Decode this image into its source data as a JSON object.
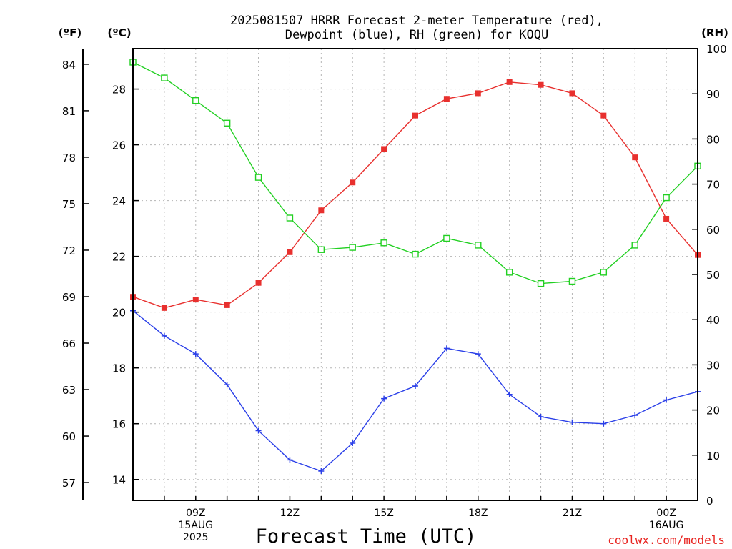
{
  "chart_data": {
    "type": "line",
    "title_line1": "2025081507 HRRR Forecast 2-meter Temperature (red),",
    "title_line2": "Dewpoint (blue), RH (green) for KOQU",
    "unit_f": "(ºF)",
    "unit_c": "(ºC)",
    "unit_rh": "(RH)",
    "xlabel": "Forecast Time (UTC)",
    "credit": "coolwx.com/models",
    "x_range": [
      7,
      25
    ],
    "c_range": [
      13.25,
      29.45
    ],
    "rh_range": [
      0,
      100
    ],
    "c_ticks": [
      "14",
      "16",
      "18",
      "20",
      "22",
      "24",
      "26",
      "28"
    ],
    "f_ticks": [
      "57",
      "60",
      "63",
      "66",
      "69",
      "72",
      "75",
      "78",
      "81",
      "84"
    ],
    "rh_ticks": [
      "0",
      "10",
      "20",
      "30",
      "40",
      "50",
      "60",
      "70",
      "80",
      "90",
      "100"
    ],
    "x_ticks": [
      {
        "x": 9,
        "lines": [
          "09Z",
          "15AUG",
          "2025"
        ]
      },
      {
        "x": 12,
        "lines": [
          "12Z"
        ]
      },
      {
        "x": 15,
        "lines": [
          "15Z"
        ]
      },
      {
        "x": 18,
        "lines": [
          "18Z"
        ]
      },
      {
        "x": 21,
        "lines": [
          "21Z"
        ]
      },
      {
        "x": 24,
        "lines": [
          "00Z",
          "16AUG"
        ]
      }
    ],
    "x": [
      7,
      8,
      9,
      10,
      11,
      12,
      13,
      14,
      15,
      16,
      17,
      18,
      19,
      20,
      21,
      22,
      23,
      24,
      25
    ],
    "series": [
      {
        "name": "Temperature",
        "axis": "c",
        "color": "#e8302e",
        "marker": "filled-square",
        "values": [
          20.55,
          20.15,
          20.45,
          20.25,
          21.05,
          22.15,
          23.65,
          24.65,
          25.85,
          27.05,
          27.65,
          27.85,
          28.25,
          28.15,
          27.85,
          27.05,
          25.55,
          23.35,
          22.05
        ]
      },
      {
        "name": "Dewpoint",
        "axis": "c",
        "color": "#2a3fe8",
        "marker": "plus",
        "values": [
          20.05,
          19.15,
          18.5,
          17.4,
          15.75,
          14.7,
          14.3,
          15.3,
          16.9,
          17.35,
          18.7,
          18.5,
          17.05,
          16.25,
          16.05,
          16.0,
          16.3,
          16.85,
          17.15
        ]
      },
      {
        "name": "RH",
        "axis": "rh",
        "color": "#22d022",
        "marker": "open-square",
        "values": [
          97,
          93.5,
          88.5,
          83.5,
          71.5,
          62.5,
          55.5,
          56,
          57,
          54.5,
          58,
          56.5,
          50.5,
          48,
          48.5,
          50.5,
          56.5,
          67,
          74
        ]
      }
    ]
  }
}
